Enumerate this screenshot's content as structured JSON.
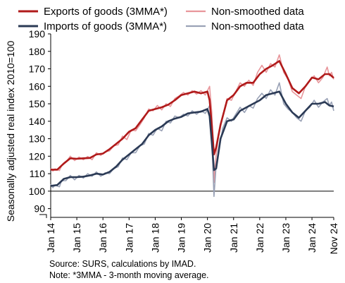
{
  "chart_data": {
    "type": "line",
    "ylabel": "Seasonally adjusted real index 2010=100",
    "ylim": [
      85,
      190
    ],
    "yticks": [
      90,
      100,
      110,
      120,
      130,
      140,
      150,
      160,
      170,
      180,
      190
    ],
    "reference_line": 100,
    "axis_break": true,
    "grid": false,
    "legend": "top",
    "x_tick_labels": [
      "Jan 14",
      "Jan 15",
      "Jan 16",
      "Jan 17",
      "Jan 18",
      "Jan 19",
      "Jan 20",
      "Jan 21",
      "Jan 22",
      "Jan 23",
      "Jan 24",
      "Nov 24"
    ],
    "x_start": "2014-01",
    "x_end": "2024-11",
    "series": [
      {
        "name": "Exports of goods (3MMA*)",
        "color": "#b01a1a",
        "points": [
          [
            "2014-01",
            112.3
          ],
          [
            "2014-04",
            112.3
          ],
          [
            "2014-07",
            115.8
          ],
          [
            "2014-10",
            118.8
          ],
          [
            "2015-01",
            118.5
          ],
          [
            "2015-04",
            118.8
          ],
          [
            "2015-07",
            119.0
          ],
          [
            "2015-10",
            121.0
          ],
          [
            "2016-01",
            121.5
          ],
          [
            "2016-04",
            124.0
          ],
          [
            "2016-07",
            127.0
          ],
          [
            "2016-10",
            130.0
          ],
          [
            "2017-01",
            134.0
          ],
          [
            "2017-04",
            136.0
          ],
          [
            "2017-07",
            141.0
          ],
          [
            "2017-10",
            146.0
          ],
          [
            "2018-01",
            147.0
          ],
          [
            "2018-04",
            148.0
          ],
          [
            "2018-07",
            149.5
          ],
          [
            "2018-10",
            152.0
          ],
          [
            "2019-01",
            155.0
          ],
          [
            "2019-04",
            156.0
          ],
          [
            "2019-07",
            157.0
          ],
          [
            "2019-10",
            156.0
          ],
          [
            "2020-01",
            157.0
          ],
          [
            "2020-02",
            152.0
          ],
          [
            "2020-03",
            138.0
          ],
          [
            "2020-04",
            121.0
          ],
          [
            "2020-05",
            125.0
          ],
          [
            "2020-07",
            138.0
          ],
          [
            "2020-10",
            152.0
          ],
          [
            "2021-01",
            155.0
          ],
          [
            "2021-04",
            160.0
          ],
          [
            "2021-07",
            162.0
          ],
          [
            "2021-10",
            162.0
          ],
          [
            "2022-01",
            167.0
          ],
          [
            "2022-04",
            170.0
          ],
          [
            "2022-07",
            172.0
          ],
          [
            "2022-10",
            174.5
          ],
          [
            "2023-01",
            167.0
          ],
          [
            "2023-04",
            159.0
          ],
          [
            "2023-07",
            156.0
          ],
          [
            "2023-10",
            160.0
          ],
          [
            "2024-01",
            165.0
          ],
          [
            "2024-04",
            164.0
          ],
          [
            "2024-07",
            167.0
          ],
          [
            "2024-09",
            167.0
          ],
          [
            "2024-11",
            164.8
          ]
        ]
      },
      {
        "name": "Non-smoothed data",
        "color": "#e8969b",
        "points": [
          [
            "2014-01",
            113.0
          ],
          [
            "2014-02",
            111.5
          ],
          [
            "2014-03",
            112.8
          ],
          [
            "2014-05",
            111.8
          ],
          [
            "2014-06",
            114.5
          ],
          [
            "2014-08",
            116.5
          ],
          [
            "2014-10",
            120.0
          ],
          [
            "2014-12",
            117.5
          ],
          [
            "2015-02",
            119.5
          ],
          [
            "2015-04",
            118.0
          ],
          [
            "2015-06",
            119.8
          ],
          [
            "2015-08",
            118.0
          ],
          [
            "2015-10",
            122.0
          ],
          [
            "2015-12",
            120.5
          ],
          [
            "2016-02",
            122.5
          ],
          [
            "2016-04",
            123.0
          ],
          [
            "2016-06",
            126.0
          ],
          [
            "2016-08",
            126.5
          ],
          [
            "2016-10",
            131.5
          ],
          [
            "2016-12",
            129.5
          ],
          [
            "2017-02",
            135.0
          ],
          [
            "2017-04",
            134.5
          ],
          [
            "2017-06",
            138.0
          ],
          [
            "2017-08",
            142.0
          ],
          [
            "2017-10",
            147.0
          ],
          [
            "2017-12",
            146.0
          ],
          [
            "2018-02",
            149.0
          ],
          [
            "2018-04",
            146.5
          ],
          [
            "2018-06",
            150.0
          ],
          [
            "2018-08",
            148.5
          ],
          [
            "2018-10",
            153.0
          ],
          [
            "2018-12",
            154.5
          ],
          [
            "2019-02",
            156.5
          ],
          [
            "2019-04",
            155.0
          ],
          [
            "2019-06",
            157.5
          ],
          [
            "2019-08",
            155.5
          ],
          [
            "2019-10",
            157.5
          ],
          [
            "2019-12",
            155.0
          ],
          [
            "2020-02",
            160.0
          ],
          [
            "2020-03",
            145.0
          ],
          [
            "2020-04",
            105.0
          ],
          [
            "2020-05",
            121.0
          ],
          [
            "2020-06",
            131.0
          ],
          [
            "2020-08",
            143.0
          ],
          [
            "2020-10",
            153.0
          ],
          [
            "2020-12",
            152.0
          ],
          [
            "2021-02",
            157.0
          ],
          [
            "2021-04",
            162.0
          ],
          [
            "2021-06",
            160.0
          ],
          [
            "2021-08",
            163.5
          ],
          [
            "2021-10",
            160.5
          ],
          [
            "2021-12",
            168.0
          ],
          [
            "2022-02",
            172.0
          ],
          [
            "2022-04",
            168.0
          ],
          [
            "2022-06",
            173.0
          ],
          [
            "2022-08",
            171.0
          ],
          [
            "2022-10",
            178.0
          ],
          [
            "2022-12",
            168.0
          ],
          [
            "2023-02",
            164.0
          ],
          [
            "2023-04",
            157.0
          ],
          [
            "2023-06",
            155.0
          ],
          [
            "2023-08",
            153.0
          ],
          [
            "2023-10",
            160.0
          ],
          [
            "2023-12",
            163.0
          ],
          [
            "2024-02",
            166.0
          ],
          [
            "2024-04",
            162.0
          ],
          [
            "2024-06",
            165.0
          ],
          [
            "2024-08",
            171.0
          ],
          [
            "2024-09",
            166.0
          ],
          [
            "2024-10",
            168.0
          ],
          [
            "2024-11",
            164.0
          ]
        ]
      },
      {
        "name": "Imports of goods (3MMA*)",
        "color": "#2b3a55",
        "points": [
          [
            "2014-01",
            103.0
          ],
          [
            "2014-04",
            103.5
          ],
          [
            "2014-07",
            107.0
          ],
          [
            "2014-10",
            108.0
          ],
          [
            "2015-01",
            108.0
          ],
          [
            "2015-04",
            108.3
          ],
          [
            "2015-07",
            109.0
          ],
          [
            "2015-10",
            110.0
          ],
          [
            "2016-01",
            109.5
          ],
          [
            "2016-04",
            111.0
          ],
          [
            "2016-07",
            114.0
          ],
          [
            "2016-10",
            118.0
          ],
          [
            "2017-01",
            121.0
          ],
          [
            "2017-04",
            124.0
          ],
          [
            "2017-07",
            127.0
          ],
          [
            "2017-10",
            132.0
          ],
          [
            "2018-01",
            135.0
          ],
          [
            "2018-04",
            137.0
          ],
          [
            "2018-07",
            140.0
          ],
          [
            "2018-10",
            141.5
          ],
          [
            "2019-01",
            142.5
          ],
          [
            "2019-04",
            144.5
          ],
          [
            "2019-07",
            145.0
          ],
          [
            "2019-10",
            145.5
          ],
          [
            "2020-01",
            147.0
          ],
          [
            "2020-02",
            143.0
          ],
          [
            "2020-03",
            128.0
          ],
          [
            "2020-04",
            112.0
          ],
          [
            "2020-05",
            113.0
          ],
          [
            "2020-07",
            130.0
          ],
          [
            "2020-10",
            140.0
          ],
          [
            "2021-01",
            141.0
          ],
          [
            "2021-04",
            146.0
          ],
          [
            "2021-07",
            148.0
          ],
          [
            "2021-10",
            150.0
          ],
          [
            "2022-01",
            152.0
          ],
          [
            "2022-04",
            155.0
          ],
          [
            "2022-07",
            156.0
          ],
          [
            "2022-10",
            157.0
          ],
          [
            "2023-01",
            150.0
          ],
          [
            "2023-04",
            145.0
          ],
          [
            "2023-07",
            142.0
          ],
          [
            "2023-10",
            146.0
          ],
          [
            "2024-01",
            150.0
          ],
          [
            "2024-04",
            150.0
          ],
          [
            "2024-07",
            151.0
          ],
          [
            "2024-09",
            149.0
          ],
          [
            "2024-11",
            148.5
          ]
        ]
      },
      {
        "name": "Non-smoothed data",
        "color": "#9aa2b6",
        "points": [
          [
            "2014-01",
            104.0
          ],
          [
            "2014-02",
            102.0
          ],
          [
            "2014-03",
            103.5
          ],
          [
            "2014-05",
            102.5
          ],
          [
            "2014-06",
            106.0
          ],
          [
            "2014-08",
            106.0
          ],
          [
            "2014-10",
            109.0
          ],
          [
            "2014-12",
            106.5
          ],
          [
            "2015-02",
            109.0
          ],
          [
            "2015-04",
            107.5
          ],
          [
            "2015-06",
            110.0
          ],
          [
            "2015-08",
            108.5
          ],
          [
            "2015-10",
            111.0
          ],
          [
            "2015-12",
            108.5
          ],
          [
            "2016-02",
            110.5
          ],
          [
            "2016-04",
            110.0
          ],
          [
            "2016-06",
            113.0
          ],
          [
            "2016-08",
            114.0
          ],
          [
            "2016-10",
            119.0
          ],
          [
            "2016-12",
            118.0
          ],
          [
            "2017-02",
            122.0
          ],
          [
            "2017-04",
            122.0
          ],
          [
            "2017-06",
            126.0
          ],
          [
            "2017-08",
            127.0
          ],
          [
            "2017-10",
            133.0
          ],
          [
            "2017-12",
            132.0
          ],
          [
            "2018-02",
            136.0
          ],
          [
            "2018-04",
            134.5
          ],
          [
            "2018-06",
            140.0
          ],
          [
            "2018-08",
            139.0
          ],
          [
            "2018-10",
            143.0
          ],
          [
            "2018-12",
            142.0
          ],
          [
            "2019-02",
            144.0
          ],
          [
            "2019-04",
            143.0
          ],
          [
            "2019-06",
            146.0
          ],
          [
            "2019-08",
            144.0
          ],
          [
            "2019-10",
            146.0
          ],
          [
            "2019-12",
            144.5
          ],
          [
            "2020-02",
            149.0
          ],
          [
            "2020-03",
            130.0
          ],
          [
            "2020-04",
            97.0
          ],
          [
            "2020-05",
            115.0
          ],
          [
            "2020-06",
            121.0
          ],
          [
            "2020-08",
            136.0
          ],
          [
            "2020-10",
            142.0
          ],
          [
            "2020-12",
            140.0
          ],
          [
            "2021-02",
            144.0
          ],
          [
            "2021-04",
            148.0
          ],
          [
            "2021-06",
            145.0
          ],
          [
            "2021-08",
            149.0
          ],
          [
            "2021-10",
            147.5
          ],
          [
            "2021-12",
            153.0
          ],
          [
            "2022-02",
            156.0
          ],
          [
            "2022-04",
            153.0
          ],
          [
            "2022-06",
            158.0
          ],
          [
            "2022-08",
            155.0
          ],
          [
            "2022-10",
            162.0
          ],
          [
            "2022-12",
            150.0
          ],
          [
            "2023-02",
            147.0
          ],
          [
            "2023-04",
            145.0
          ],
          [
            "2023-06",
            142.0
          ],
          [
            "2023-08",
            140.0
          ],
          [
            "2023-10",
            146.0
          ],
          [
            "2023-12",
            148.0
          ],
          [
            "2024-02",
            152.0
          ],
          [
            "2024-04",
            148.0
          ],
          [
            "2024-06",
            151.0
          ],
          [
            "2024-08",
            153.0
          ],
          [
            "2024-09",
            149.0
          ],
          [
            "2024-10",
            151.0
          ],
          [
            "2024-11",
            146.0
          ]
        ]
      }
    ]
  },
  "legend": [
    {
      "label": "Exports of goods (3MMA*)",
      "color": "#b01a1a"
    },
    {
      "label": "Non-smoothed data",
      "color": "#e8969b"
    },
    {
      "label": "Imports of goods (3MMA*)",
      "color": "#2b3a55"
    },
    {
      "label": "Non-smoothed data",
      "color": "#9aa2b6"
    }
  ],
  "source_note": {
    "line1": "Source: SURS, calculations by IMAD.",
    "line2": "Note: *3MMA - 3-month moving average."
  }
}
